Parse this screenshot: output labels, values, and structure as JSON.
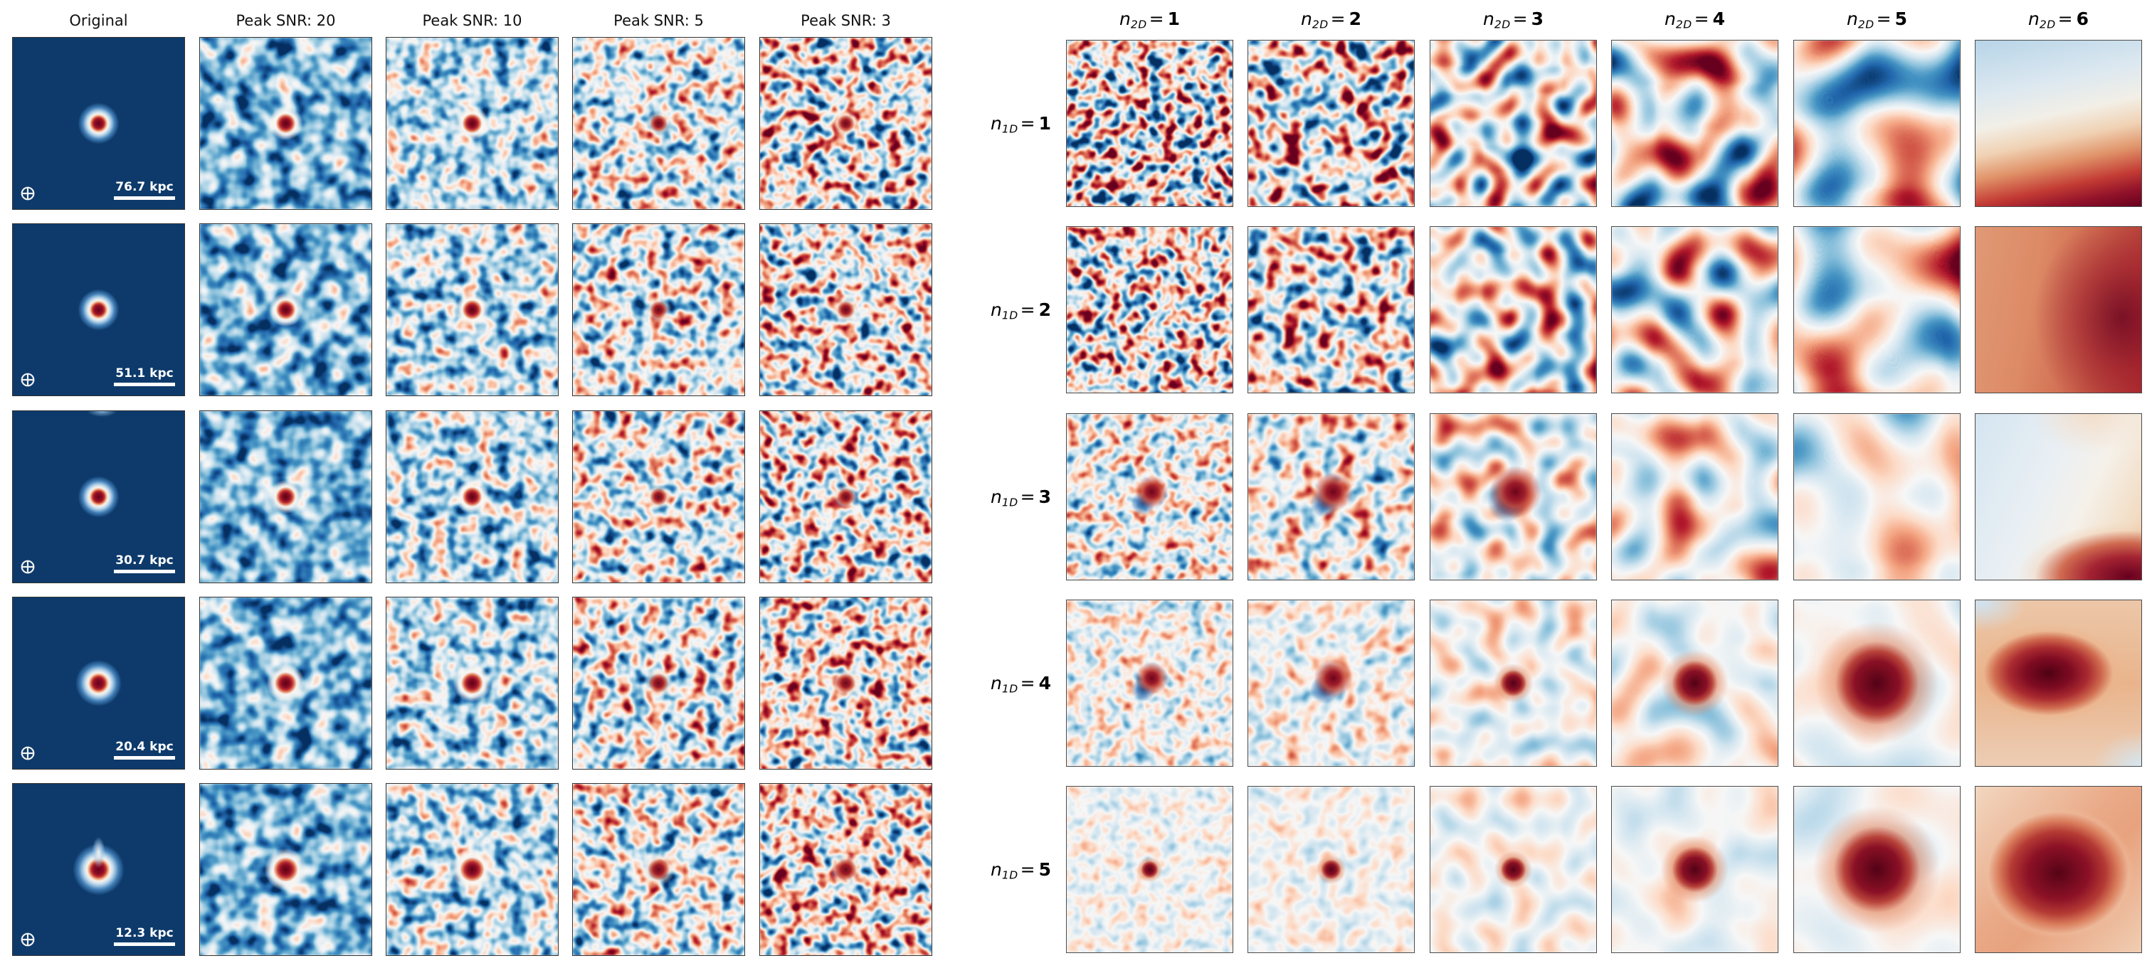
{
  "figure": {
    "description": "Two-panel scientific figure: left grid shows a simulated compact source at five physical scales imaged at decreasing peak SNR; right grid shows noise/source realizations for varying n1D (rows) and n2D (columns), all in an RdBu diverging colormap."
  },
  "colors": {
    "figure_background": "#ffffff",
    "original_background": "#0d3a6b",
    "panel_border": "#333333",
    "header_text": "#111111",
    "scalebar_color": "#ffffff",
    "rdbu_dark_blue": "#053061",
    "rdbu_mid": "#f7f7f7",
    "rdbu_dark_red": "#67001f"
  },
  "colormap": {
    "name": "RdBu",
    "r": [
      0.02,
      0.129,
      0.263,
      0.573,
      0.82,
      0.969,
      0.992,
      0.957,
      0.839,
      0.698,
      0.404
    ],
    "g": [
      0.188,
      0.4,
      0.576,
      0.773,
      0.898,
      0.969,
      0.859,
      0.647,
      0.376,
      0.094,
      0.0
    ],
    "b": [
      0.38,
      0.675,
      0.765,
      0.871,
      0.941,
      0.969,
      0.78,
      0.51,
      0.302,
      0.169,
      0.122
    ]
  },
  "left_grid": {
    "column_headers": [
      "Original",
      "Peak SNR: 20",
      "Peak SNR: 10",
      "Peak SNR: 5",
      "Peak SNR: 3"
    ],
    "column_keys": [
      "original",
      "snr-20",
      "snr-10",
      "snr-5",
      "snr-3"
    ],
    "rows": [
      {
        "scalebar_label": "76.7 kpc"
      },
      {
        "scalebar_label": "51.1 kpc"
      },
      {
        "scalebar_label": "30.7 kpc"
      },
      {
        "scalebar_label": "20.4 kpc"
      },
      {
        "scalebar_label": "12.3 kpc"
      }
    ],
    "beam_symbol": "circled-plus"
  },
  "right_grid": {
    "column_headers": [
      {
        "var": "n",
        "sub": "2D",
        "rel": "=",
        "value": "1"
      },
      {
        "var": "n",
        "sub": "2D",
        "rel": "=",
        "value": "2"
      },
      {
        "var": "n",
        "sub": "2D",
        "rel": "=",
        "value": "3"
      },
      {
        "var": "n",
        "sub": "2D",
        "rel": "=",
        "value": "4"
      },
      {
        "var": "n",
        "sub": "2D",
        "rel": "=",
        "value": "5"
      },
      {
        "var": "n",
        "sub": "2D",
        "rel": "=",
        "value": "6"
      }
    ],
    "row_labels": [
      {
        "var": "n",
        "sub": "1D",
        "rel": "=",
        "value": "1"
      },
      {
        "var": "n",
        "sub": "1D",
        "rel": "=",
        "value": "2"
      },
      {
        "var": "n",
        "sub": "1D",
        "rel": "=",
        "value": "3"
      },
      {
        "var": "n",
        "sub": "1D",
        "rel": "=",
        "value": "4"
      },
      {
        "var": "n",
        "sub": "1D",
        "rel": "=",
        "value": "5"
      }
    ]
  },
  "panels": {
    "left": {
      "columns": [
        {
          "key": "original",
          "kind": "original"
        },
        {
          "key": "snr-20",
          "kind": "noise",
          "bf": 0.038,
          "oct": 2,
          "amp": 1.15,
          "mean": 0.27,
          "dot": "ring"
        },
        {
          "key": "snr-10",
          "kind": "noise",
          "bf": 0.046,
          "oct": 2,
          "amp": 1.35,
          "mean": 0.37,
          "dot": "ring"
        },
        {
          "key": "snr-5",
          "kind": "noise",
          "bf": 0.048,
          "oct": 2,
          "amp": 1.55,
          "mean": 0.46,
          "dot": "small"
        },
        {
          "key": "snr-3",
          "kind": "noise",
          "bf": 0.05,
          "oct": 2,
          "amp": 1.85,
          "mean": 0.5,
          "dot": "small"
        }
      ],
      "row_dot_scale": [
        1.0,
        1.0,
        1.0,
        1.12,
        1.25
      ],
      "row_overrides": {
        "2": {
          "0": {
            "smudge": true
          }
        },
        "3": {
          "4": {
            "mean": 0.54
          }
        },
        "4": {
          "0": {
            "tail": true
          },
          "4": {
            "mean": 0.55
          }
        }
      }
    },
    "right": {
      "col_bf": [
        0.052,
        0.04,
        0.027,
        0.016,
        0.0095,
        null
      ],
      "col_oct": [
        2,
        2,
        1,
        1,
        1,
        null
      ],
      "row_amp": [
        2.2,
        2.0,
        1.35,
        0.9,
        0.55
      ],
      "patterns_col6": [
        "smooth-1",
        "smooth-2",
        "smooth-3",
        "smooth-4",
        "smooth-5"
      ],
      "dots": {
        "2": {
          "0": {
            "type": "dipole",
            "r": 20
          },
          "1": {
            "type": "dipole",
            "r": 24
          },
          "2": {
            "type": "dipole",
            "r": 32
          }
        },
        "3": {
          "0": {
            "type": "dipole",
            "r": 20
          },
          "1": {
            "type": "dipole",
            "r": 24
          },
          "2": {
            "type": "blob",
            "r": 20
          },
          "3": {
            "type": "blob",
            "r": 34
          },
          "4": {
            "type": "blob",
            "r": 62
          }
        },
        "4": {
          "0": {
            "type": "blob",
            "r": 13
          },
          "1": {
            "type": "blob",
            "r": 15
          },
          "2": {
            "type": "blob",
            "r": 19
          },
          "3": {
            "type": "blob",
            "r": 34
          },
          "4": {
            "type": "blob",
            "r": 64
          }
        }
      }
    }
  },
  "chart_data": [
    {
      "type": "heatmap",
      "title": "Source images at decreasing peak SNR",
      "columns": [
        "Original",
        "Peak SNR: 20",
        "Peak SNR: 10",
        "Peak SNR: 5",
        "Peak SNR: 3"
      ],
      "rows_scalebar_kpc": [
        76.7,
        51.1,
        30.7,
        20.4,
        12.3
      ],
      "colormap": "RdBu",
      "legend_position": "none",
      "grid": "off"
    },
    {
      "type": "heatmap",
      "title": "Realizations versus n1D and n2D",
      "columns": [
        "n2D = 1",
        "n2D = 2",
        "n2D = 3",
        "n2D = 4",
        "n2D = 5",
        "n2D = 6"
      ],
      "rows": [
        "n1D = 1",
        "n1D = 2",
        "n1D = 3",
        "n1D = 4",
        "n1D = 5"
      ],
      "colormap": "RdBu",
      "legend_position": "none",
      "grid": "off"
    }
  ]
}
